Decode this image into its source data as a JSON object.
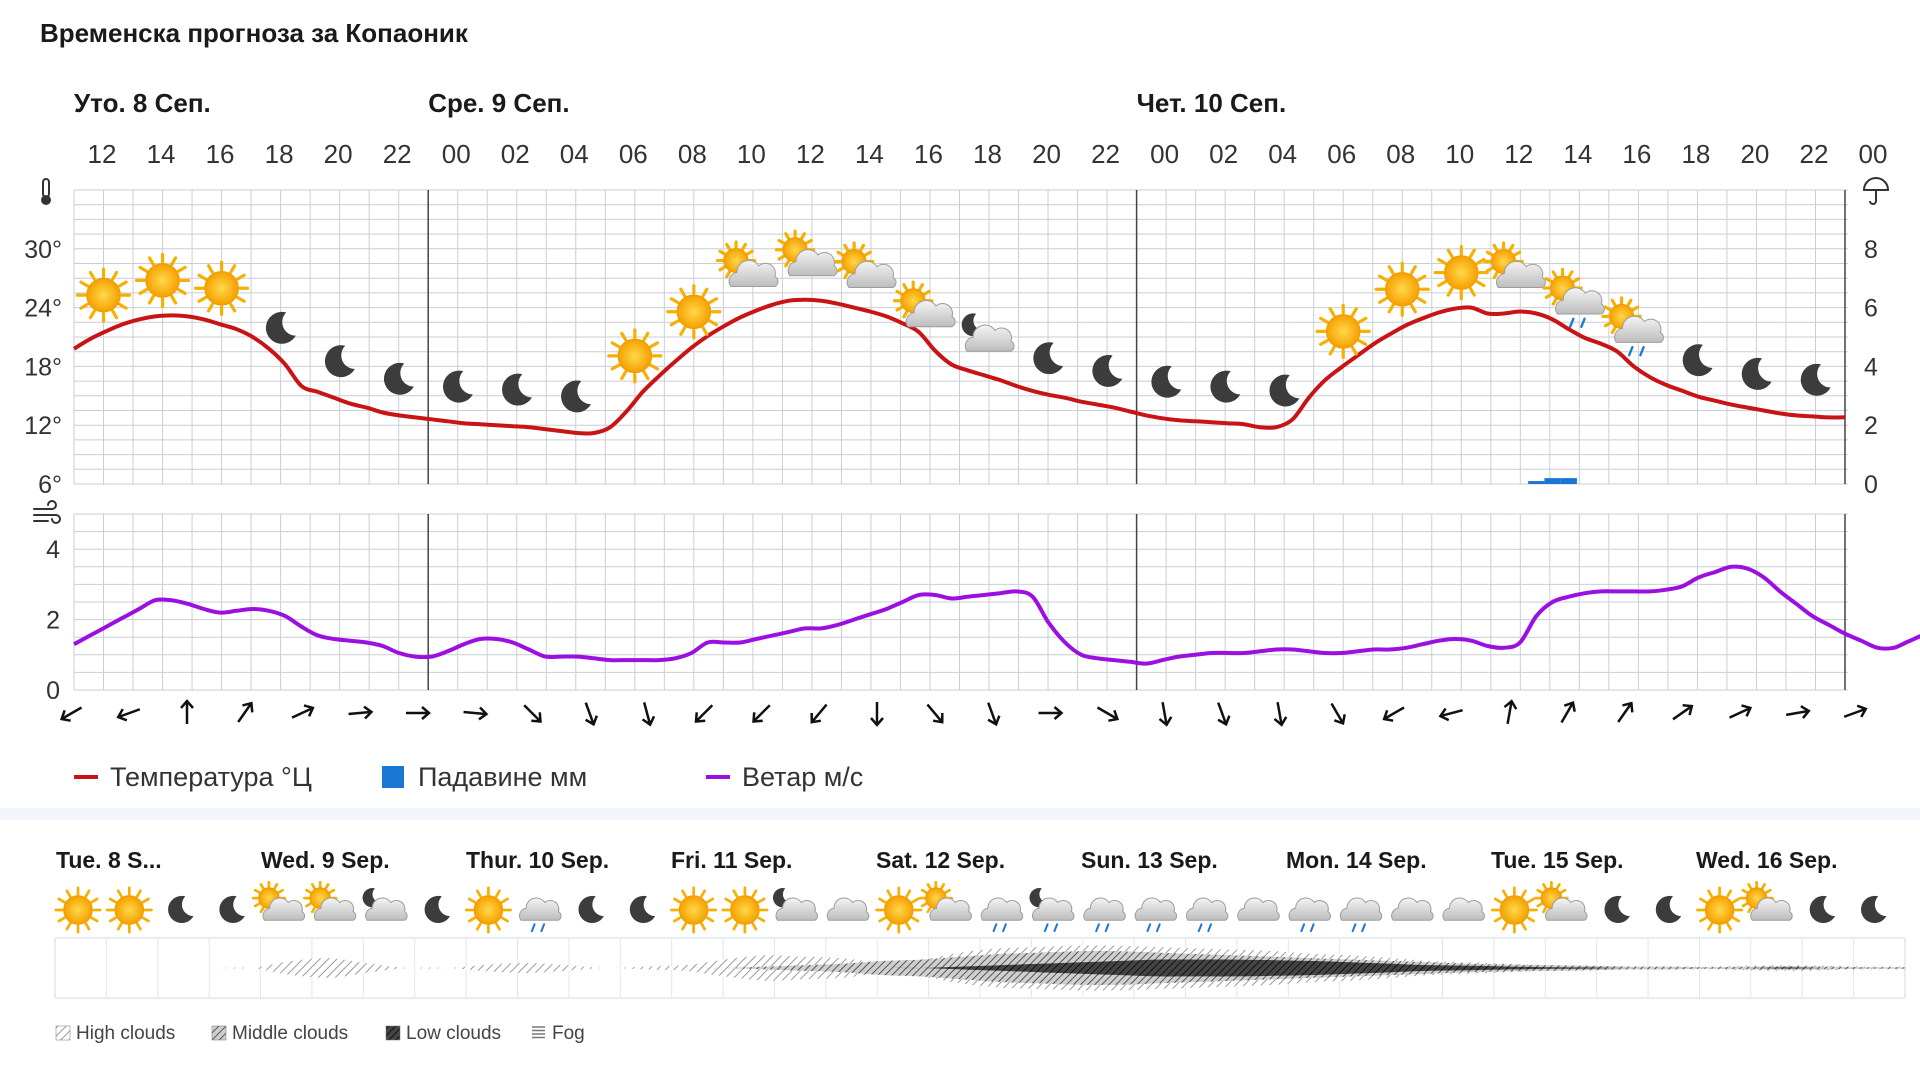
{
  "title": "Временска прогноза за Копаоник",
  "chart_data": [
    {
      "type": "line",
      "days": [
        "Уто. 8 Сеп.",
        "Сре. 9 Сеп.",
        "Чет. 10 Сеп."
      ],
      "hour_labels": [
        "12",
        "14",
        "16",
        "18",
        "20",
        "22",
        "00",
        "02",
        "04",
        "06",
        "08",
        "10",
        "12",
        "14",
        "16",
        "18",
        "20",
        "22",
        "00",
        "02",
        "04",
        "06",
        "08",
        "10",
        "12",
        "14",
        "16",
        "18",
        "20",
        "22",
        "00"
      ],
      "temp_axis": {
        "ticks": [
          "6°",
          "12°",
          "18°",
          "24°",
          "30°"
        ],
        "range": [
          6,
          36
        ]
      },
      "precip_axis": {
        "ticks": [
          "0",
          "2",
          "4",
          "6",
          "8"
        ],
        "range": [
          0,
          10
        ]
      },
      "wind_axis": {
        "ticks": [
          "0",
          "2",
          "4"
        ],
        "range": [
          0,
          5
        ]
      },
      "legend": [
        {
          "label": "Температура °Ц",
          "color": "#c81414",
          "kind": "line"
        },
        {
          "label": "Падавине мм",
          "color": "#1976d2",
          "kind": "box"
        },
        {
          "label": "Ветар м/с",
          "color": "#9b10e0",
          "kind": "line"
        }
      ],
      "temperature_c": [
        19.8,
        20.8,
        21.6,
        22.3,
        22.8,
        23.1,
        23.2,
        23.1,
        22.8,
        22.3,
        21.8,
        21.0,
        19.8,
        18.2,
        16.0,
        15.4,
        14.8,
        14.2,
        13.8,
        13.3,
        13.0,
        12.8,
        12.6,
        12.4,
        12.2,
        12.1,
        12.0,
        11.9,
        11.8,
        11.6,
        11.4,
        11.2,
        11.2,
        11.8,
        13.4,
        15.4,
        17.0,
        18.5,
        19.9,
        21.1,
        22.1,
        23.0,
        23.7,
        24.3,
        24.7,
        24.8,
        24.7,
        24.4,
        24.0,
        23.6,
        23.1,
        22.4,
        21.5,
        19.6,
        18.2,
        17.6,
        17.1,
        16.6,
        16.0,
        15.5,
        15.1,
        14.8,
        14.4,
        14.1,
        13.8,
        13.4,
        13.0,
        12.7,
        12.5,
        12.4,
        12.3,
        12.2,
        12.1,
        11.8,
        11.8,
        12.6,
        14.8,
        16.6,
        17.9,
        19.1,
        20.3,
        21.3,
        22.2,
        22.9,
        23.5,
        23.9,
        24.0,
        23.4,
        23.4,
        23.6,
        23.4,
        22.8,
        21.8,
        20.9,
        20.3,
        19.5,
        18.0,
        16.9,
        16.1,
        15.5,
        14.9,
        14.5,
        14.1,
        13.8,
        13.5,
        13.2,
        13.0,
        12.9,
        12.8,
        12.8
      ],
      "wind_ms": [
        1.3,
        1.55,
        1.8,
        2.05,
        2.3,
        2.55,
        2.55,
        2.45,
        2.3,
        2.2,
        2.25,
        2.3,
        2.25,
        2.1,
        1.8,
        1.55,
        1.45,
        1.4,
        1.35,
        1.25,
        1.05,
        0.95,
        0.95,
        1.1,
        1.3,
        1.45,
        1.45,
        1.35,
        1.15,
        0.95,
        0.95,
        0.95,
        0.9,
        0.85,
        0.85,
        0.85,
        0.85,
        0.9,
        1.05,
        1.35,
        1.35,
        1.35,
        1.45,
        1.55,
        1.65,
        1.75,
        1.75,
        1.85,
        2.0,
        2.15,
        2.3,
        2.5,
        2.7,
        2.7,
        2.6,
        2.65,
        2.7,
        2.75,
        2.8,
        2.65,
        1.9,
        1.35,
        1.0,
        0.9,
        0.85,
        0.8,
        0.75,
        0.85,
        0.95,
        1.0,
        1.05,
        1.05,
        1.05,
        1.1,
        1.15,
        1.15,
        1.1,
        1.05,
        1.05,
        1.1,
        1.15,
        1.15,
        1.2,
        1.3,
        1.4,
        1.45,
        1.4,
        1.25,
        1.2,
        1.35,
        2.1,
        2.5,
        2.65,
        2.75,
        2.8,
        2.8,
        2.8,
        2.8,
        2.85,
        2.95,
        3.2,
        3.35,
        3.5,
        3.45,
        3.2,
        2.8,
        2.45,
        2.1,
        1.85,
        1.6,
        1.4,
        1.2,
        1.2,
        1.4,
        1.55,
        1.25,
        1.0,
        1.0,
        0.95,
        0.85
      ],
      "precip_mm": [
        0,
        0,
        0,
        0,
        0,
        0,
        0,
        0,
        0,
        0,
        0,
        0,
        0,
        0,
        0,
        0,
        0,
        0,
        0,
        0,
        0,
        0,
        0,
        0,
        0,
        0,
        0,
        0,
        0,
        0,
        0,
        0,
        0,
        0,
        0,
        0,
        0,
        0,
        0,
        0,
        0,
        0,
        0,
        0,
        0,
        0,
        0,
        0,
        0,
        0,
        0,
        0,
        0,
        0,
        0,
        0,
        0,
        0,
        0,
        0,
        0,
        0,
        0,
        0,
        0,
        0,
        0,
        0,
        0,
        0,
        0,
        0,
        0,
        0,
        0,
        0,
        0,
        0,
        0,
        0,
        0,
        0,
        0,
        0,
        0,
        0,
        0,
        0,
        0,
        0,
        0.1,
        0.2,
        0.2,
        0,
        0,
        0,
        0,
        0,
        0,
        0,
        0,
        0,
        0,
        0,
        0,
        0,
        0,
        0,
        0,
        0,
        0
      ],
      "icons": [
        "sun",
        "sun",
        "sun",
        "moon",
        "moon",
        "moon",
        "moon",
        "moon",
        "moon",
        "sun",
        "sun",
        "sun-cloud",
        "sun-cloud",
        "sun-cloud",
        "sun-cloud",
        "moon-cloud",
        "moon",
        "moon",
        "moon",
        "moon",
        "moon",
        "sun",
        "sun",
        "sun",
        "sun-cloud",
        "sun-cloud-rain",
        "sun-cloud-rain",
        "moon",
        "moon",
        "moon"
      ],
      "wind_dir_deg": [
        60,
        70,
        180,
        215,
        245,
        265,
        270,
        275,
        315,
        340,
        345,
        45,
        45,
        40,
        0,
        320,
        340,
        270,
        300,
        350,
        340,
        350,
        330,
        60,
        75,
        190,
        210,
        215,
        235,
        245,
        260,
        250
      ]
    },
    {
      "type": "area",
      "days": [
        "Tue. 8 S...",
        "Wed. 9 Sep.",
        "Thur. 10 Sep.",
        "Fri. 11 Sep.",
        "Sat. 12 Sep.",
        "Sun. 13 Sep.",
        "Mon. 14 Sep.",
        "Tue. 15 Sep.",
        "Wed. 16 Sep."
      ],
      "icons": [
        "sun",
        "sun",
        "moon",
        "moon",
        "sun-cloud",
        "sun-cloud",
        "moon-cloud",
        "moon",
        "sun",
        "cloud-rain",
        "moon",
        "moon",
        "sun",
        "sun",
        "moon-cloud",
        "cloud",
        "sun",
        "sun-cloud",
        "cloud-rain",
        "moon-cloud-rain",
        "cloud-rain",
        "cloud-rain",
        "cloud-rain",
        "cloud",
        "cloud-rain",
        "cloud-rain",
        "cloud",
        "cloud",
        "sun",
        "sun-cloud",
        "moon",
        "moon",
        "sun",
        "sun-cloud",
        "moon",
        "moon"
      ],
      "cloud_cover": {
        "high": [
          0,
          0,
          0,
          0,
          0,
          0,
          0.25,
          0.35,
          0.15,
          0,
          0,
          0.12,
          0.18,
          0.1,
          0,
          0.05,
          0.1,
          0.3,
          0.45,
          0.4,
          0.35,
          0.2,
          0.3,
          0.55,
          0.7,
          0.75,
          0.8,
          0.8,
          0.75,
          0.7,
          0.65,
          0.6,
          0.5,
          0.45,
          0.35,
          0.25,
          0.2,
          0.15,
          0.1,
          0.08,
          0.05,
          0.05,
          0.05,
          0.08,
          0.1,
          0.08,
          0.05,
          0.05
        ],
        "middle": [
          0,
          0,
          0,
          0,
          0,
          0,
          0,
          0,
          0,
          0,
          0,
          0,
          0,
          0,
          0,
          0,
          0,
          0,
          0.05,
          0.1,
          0.15,
          0.25,
          0.3,
          0.4,
          0.5,
          0.55,
          0.6,
          0.6,
          0.55,
          0.5,
          0.45,
          0.4,
          0.35,
          0.3,
          0.25,
          0.2,
          0.15,
          0.12,
          0.1,
          0.08,
          0.05,
          0.05,
          0.03,
          0.05,
          0.06,
          0.05,
          0.03,
          0.03
        ],
        "low": [
          0,
          0,
          0,
          0,
          0,
          0,
          0,
          0,
          0,
          0,
          0,
          0,
          0,
          0,
          0,
          0,
          0,
          0,
          0,
          0,
          0,
          0,
          0,
          0.05,
          0.1,
          0.15,
          0.2,
          0.25,
          0.3,
          0.3,
          0.3,
          0.28,
          0.25,
          0.2,
          0.15,
          0.1,
          0.08,
          0.05,
          0.03,
          0.02,
          0,
          0,
          0,
          0,
          0.02,
          0,
          0,
          0
        ],
        "fog": [
          0,
          0,
          0,
          0,
          0,
          0,
          0,
          0,
          0,
          0,
          0,
          0,
          0,
          0,
          0,
          0,
          0,
          0,
          0,
          0,
          0,
          0,
          0,
          0,
          0,
          0,
          0,
          0,
          0,
          0,
          0,
          0,
          0,
          0,
          0,
          0,
          0,
          0,
          0,
          0,
          0,
          0,
          0,
          0,
          0,
          0,
          0,
          0
        ]
      },
      "legend": [
        "High clouds",
        "Middle clouds",
        "Low clouds",
        "Fog"
      ]
    }
  ]
}
